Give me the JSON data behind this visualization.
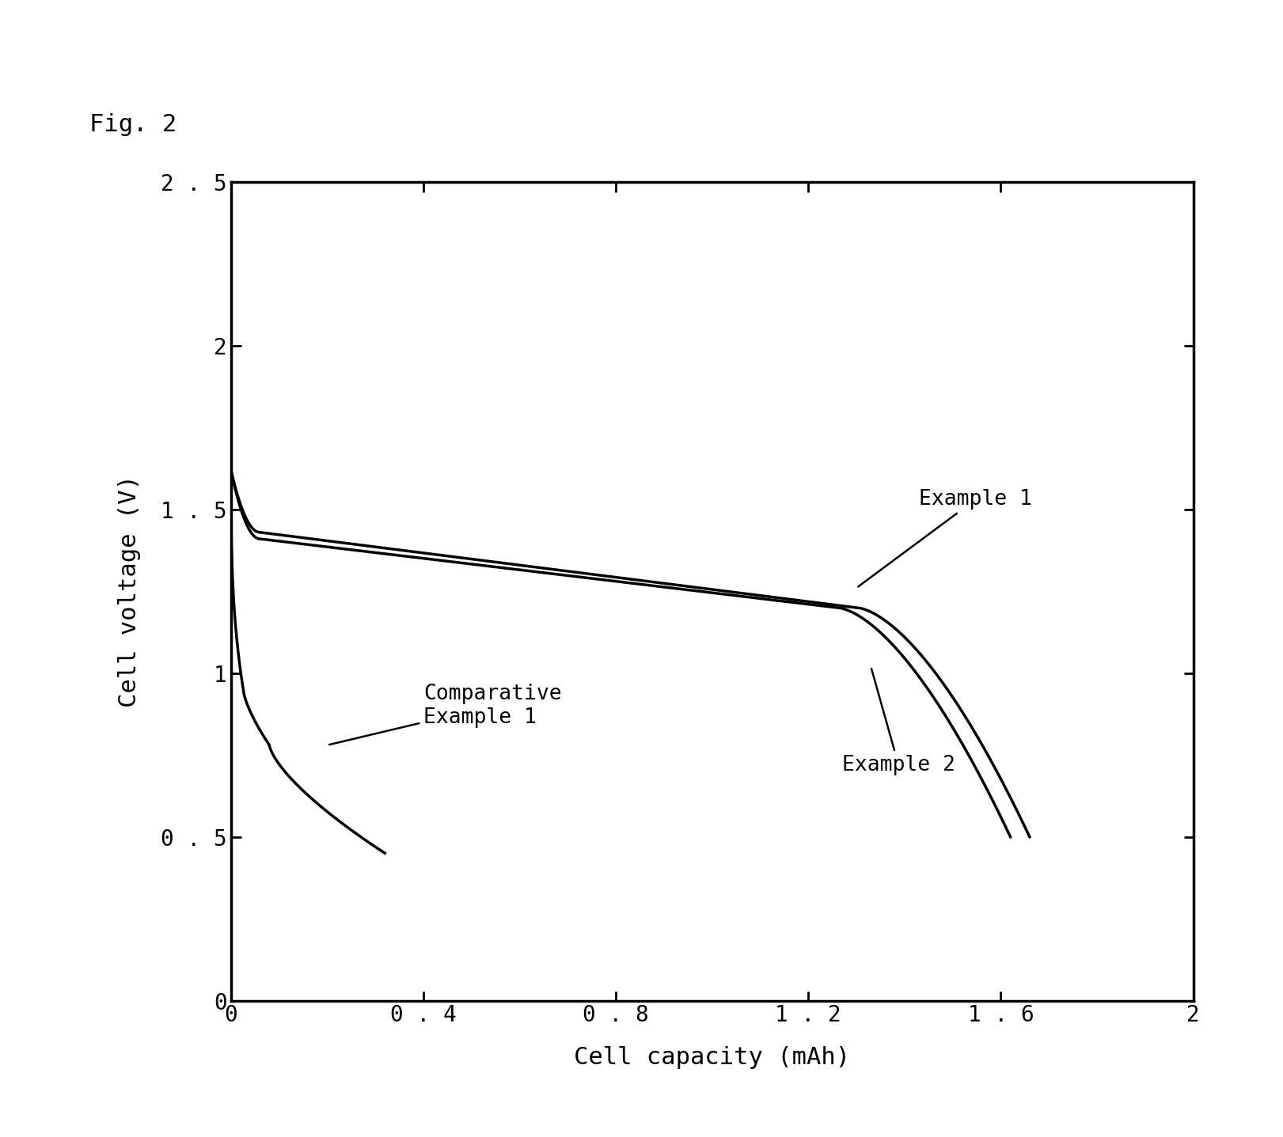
{
  "title": "Fig. 2",
  "xlabel": "Cell capacity (mAh)",
  "ylabel": "Cell voltage (V)",
  "xlim": [
    0,
    2.0
  ],
  "ylim": [
    0,
    2.5
  ],
  "xticks": [
    0,
    0.4,
    0.8,
    1.2,
    1.6,
    2.0
  ],
  "yticks": [
    0,
    0.5,
    1.0,
    1.5,
    2.0,
    2.5
  ],
  "background_color": "#ffffff",
  "line_color": "#000000",
  "annotation_fontsize": 19,
  "label_fontsize": 22,
  "tick_fontsize": 20,
  "title_fontsize": 22,
  "example1_label": "Example 1",
  "example2_label": "Example 2",
  "comp_label": "Comparative\nExample 1",
  "spine_linewidth": 2.5,
  "line_linewidth": 2.5
}
